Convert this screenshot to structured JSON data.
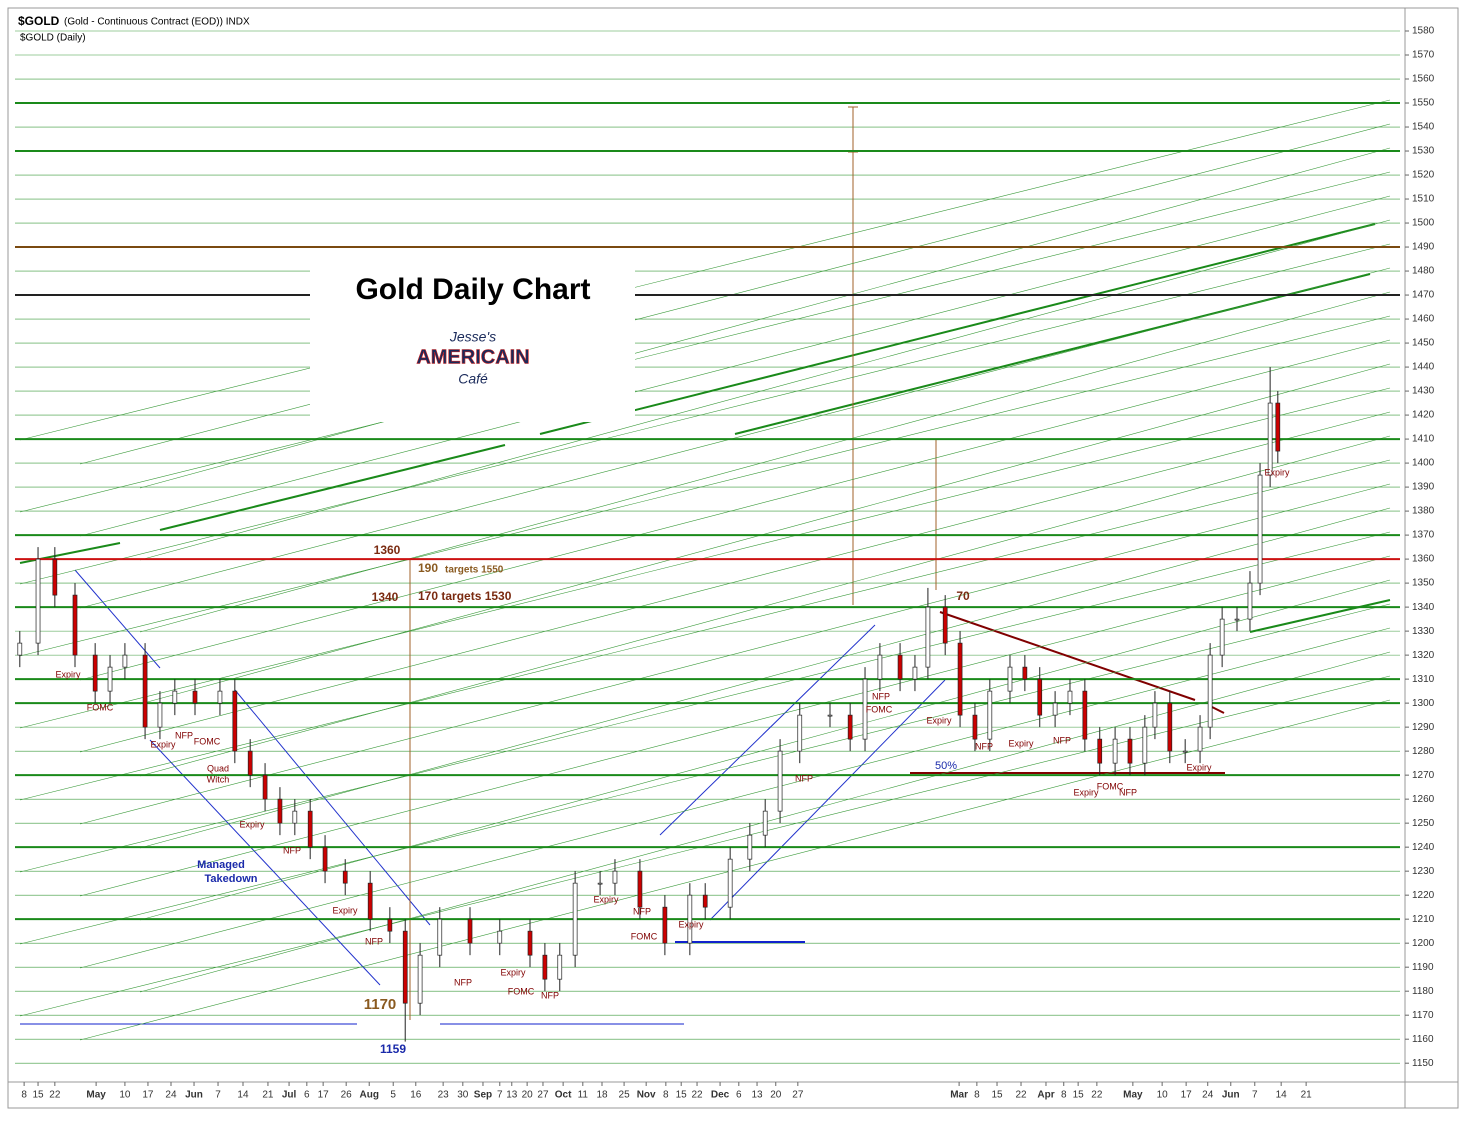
{
  "header": {
    "symbol": "$GOLD",
    "description": "(Gold - Continuous Contract (EOD)) INDX",
    "subtitle": "$GOLD (Daily)"
  },
  "logo": {
    "line1": "Jesse's",
    "line2": "AMERICAIN",
    "line3": "Café"
  },
  "chart_data": {
    "type": "candlestick",
    "title": "Gold Daily Chart",
    "x": [
      1.0,
      4.8,
      8.3,
      12.5,
      16.7,
      19.8,
      22.9,
      27.1,
      30.2,
      33.3,
      37.5,
      42.7,
      45.8,
      49.0,
      52.1,
      55.2,
      58.3,
      61.5,
      64.6,
      68.8,
      74.0,
      78.1,
      81.3,
      84.4,
      88.5,
      94.8,
      101.0,
      107.3,
      110.4,
      113.5,
      116.7,
      121.9,
      125.0,
      130.2,
      135.4,
      140.6,
      143.8,
      149.0,
      153.1,
      156.3,
      159.4,
      163.5,
      169.8,
      174.0,
      177.1,
      180.2,
      184.4,
      187.5,
      190.2,
      193.8,
      196.9,
      200.0,
      203.1,
      207.3,
      210.4,
      213.5,
      216.7,
      219.8,
      222.9,
      226.0,
      229.2,
      232.3,
      235.4,
      237.5,
      240.6,
      243.8,
      246.9,
      249.0,
      251.5,
      254.6,
      257.3,
      259.4,
      261.5,
      263.1
    ],
    "open": [
      1320,
      1325,
      1360,
      1345,
      1320,
      1305,
      1315,
      1320,
      1290,
      1300,
      1305,
      1300,
      1305,
      1280,
      1270,
      1260,
      1250,
      1255,
      1240,
      1230,
      1225,
      1210,
      1205,
      1175,
      1195,
      1210,
      1200,
      1205,
      1195,
      1185,
      1195,
      1225,
      1225,
      1230,
      1215,
      1200,
      1220,
      1215,
      1235,
      1245,
      1255,
      1280,
      1295,
      1295,
      1285,
      1310,
      1320,
      1310,
      1315,
      1340,
      1325,
      1295,
      1285,
      1305,
      1315,
      1310,
      1295,
      1300,
      1305,
      1285,
      1275,
      1285,
      1275,
      1290,
      1300,
      1280,
      1280,
      1290,
      1320,
      1335,
      1335,
      1350,
      1395,
      1425
    ],
    "high": [
      1330,
      1365,
      1365,
      1350,
      1325,
      1320,
      1325,
      1325,
      1305,
      1310,
      1310,
      1310,
      1310,
      1285,
      1275,
      1265,
      1260,
      1260,
      1245,
      1235,
      1230,
      1215,
      1210,
      1200,
      1215,
      1215,
      1210,
      1210,
      1200,
      1200,
      1230,
      1230,
      1235,
      1235,
      1220,
      1225,
      1225,
      1240,
      1250,
      1260,
      1285,
      1300,
      1300,
      1300,
      1315,
      1325,
      1325,
      1320,
      1348,
      1345,
      1330,
      1300,
      1310,
      1320,
      1320,
      1315,
      1305,
      1310,
      1310,
      1290,
      1290,
      1290,
      1295,
      1305,
      1305,
      1285,
      1295,
      1325,
      1340,
      1340,
      1355,
      1400,
      1440,
      1430
    ],
    "low": [
      1315,
      1320,
      1340,
      1315,
      1300,
      1300,
      1310,
      1285,
      1285,
      1295,
      1295,
      1295,
      1275,
      1265,
      1255,
      1245,
      1245,
      1235,
      1225,
      1220,
      1205,
      1200,
      1159,
      1170,
      1190,
      1195,
      1195,
      1190,
      1180,
      1180,
      1190,
      1220,
      1220,
      1210,
      1195,
      1195,
      1210,
      1210,
      1230,
      1240,
      1250,
      1275,
      1290,
      1280,
      1280,
      1305,
      1305,
      1305,
      1310,
      1320,
      1290,
      1280,
      1280,
      1300,
      1305,
      1290,
      1290,
      1295,
      1280,
      1270,
      1270,
      1270,
      1270,
      1285,
      1275,
      1275,
      1275,
      1285,
      1315,
      1330,
      1330,
      1345,
      1390,
      1400
    ],
    "close": [
      1325,
      1360,
      1345,
      1320,
      1305,
      1315,
      1320,
      1290,
      1300,
      1305,
      1300,
      1305,
      1280,
      1270,
      1260,
      1250,
      1255,
      1240,
      1230,
      1225,
      1210,
      1205,
      1175,
      1195,
      1210,
      1200,
      1205,
      1195,
      1185,
      1195,
      1225,
      1225,
      1230,
      1215,
      1200,
      1220,
      1215,
      1235,
      1245,
      1255,
      1280,
      1295,
      1295,
      1285,
      1310,
      1320,
      1310,
      1315,
      1340,
      1325,
      1295,
      1285,
      1305,
      1315,
      1310,
      1295,
      1300,
      1305,
      1285,
      1275,
      1285,
      1275,
      1290,
      1300,
      1280,
      1280,
      1290,
      1320,
      1335,
      1335,
      1350,
      1395,
      1425,
      1405
    ],
    "up_color": "#ffffff",
    "down_color": "#cc0000",
    "xlim": [
      0,
      289.6
    ],
    "xticks": [
      {
        "value": 1.9,
        "label": "8"
      },
      {
        "value": 4.8,
        "label": "15"
      },
      {
        "value": 8.3,
        "label": "22"
      },
      {
        "value": 16.9,
        "label": "May"
      },
      {
        "value": 22.9,
        "label": "10"
      },
      {
        "value": 27.7,
        "label": "17"
      },
      {
        "value": 32.5,
        "label": "24"
      },
      {
        "value": 37.3,
        "label": "Jun"
      },
      {
        "value": 42.3,
        "label": "7"
      },
      {
        "value": 47.5,
        "label": "14"
      },
      {
        "value": 52.7,
        "label": "21"
      },
      {
        "value": 57.1,
        "label": "Jul"
      },
      {
        "value": 60.8,
        "label": "6"
      },
      {
        "value": 64.2,
        "label": "17"
      },
      {
        "value": 69.0,
        "label": "26"
      },
      {
        "value": 73.8,
        "label": "Aug"
      },
      {
        "value": 78.8,
        "label": "5"
      },
      {
        "value": 83.5,
        "label": "16"
      },
      {
        "value": 89.2,
        "label": "23"
      },
      {
        "value": 93.3,
        "label": "30"
      },
      {
        "value": 97.5,
        "label": "Sep"
      },
      {
        "value": 101.0,
        "label": "7"
      },
      {
        "value": 103.5,
        "label": "13"
      },
      {
        "value": 106.7,
        "label": "20"
      },
      {
        "value": 110.0,
        "label": "27"
      },
      {
        "value": 114.2,
        "label": "Oct"
      },
      {
        "value": 118.3,
        "label": "11"
      },
      {
        "value": 122.3,
        "label": "18"
      },
      {
        "value": 126.9,
        "label": "25"
      },
      {
        "value": 131.5,
        "label": "Nov"
      },
      {
        "value": 135.6,
        "label": "8"
      },
      {
        "value": 138.8,
        "label": "15"
      },
      {
        "value": 142.1,
        "label": "22"
      },
      {
        "value": 146.9,
        "label": "Dec"
      },
      {
        "value": 150.8,
        "label": "6"
      },
      {
        "value": 154.6,
        "label": "13"
      },
      {
        "value": 158.5,
        "label": "20"
      },
      {
        "value": 163.1,
        "label": "27"
      },
      {
        "value": 196.7,
        "label": "Mar"
      },
      {
        "value": 200.4,
        "label": "8"
      },
      {
        "value": 204.6,
        "label": "15"
      },
      {
        "value": 209.6,
        "label": "22"
      },
      {
        "value": 214.8,
        "label": "Apr"
      },
      {
        "value": 218.5,
        "label": "8"
      },
      {
        "value": 221.5,
        "label": "15"
      },
      {
        "value": 225.4,
        "label": "22"
      },
      {
        "value": 232.9,
        "label": "May"
      },
      {
        "value": 239.0,
        "label": "10"
      },
      {
        "value": 244.0,
        "label": "17"
      },
      {
        "value": 248.5,
        "label": "24"
      },
      {
        "value": 253.3,
        "label": "Jun"
      },
      {
        "value": 258.3,
        "label": "7"
      },
      {
        "value": 263.8,
        "label": "14"
      },
      {
        "value": 269.0,
        "label": "21"
      }
    ],
    "ylim": [
      1143,
      1590
    ],
    "yticks": [
      1150,
      1160,
      1170,
      1180,
      1190,
      1200,
      1210,
      1220,
      1230,
      1240,
      1250,
      1260,
      1270,
      1280,
      1290,
      1300,
      1310,
      1320,
      1330,
      1340,
      1350,
      1360,
      1370,
      1380,
      1390,
      1400,
      1410,
      1420,
      1430,
      1440,
      1450,
      1460,
      1470,
      1480,
      1490,
      1500,
      1510,
      1520,
      1530,
      1540,
      1550,
      1560,
      1570,
      1580
    ],
    "grid": true,
    "grid_color": "#3a9a3a",
    "levels": [
      {
        "value": 1550,
        "color": "#1a8a1a"
      },
      {
        "value": 1530,
        "color": "#1a8a1a"
      },
      {
        "value": 1490,
        "color": "#7a4a10"
      },
      {
        "value": 1470,
        "color": "#222222"
      },
      {
        "value": 1410,
        "color": "#1a8a1a"
      },
      {
        "value": 1370,
        "color": "#1a8a1a"
      },
      {
        "value": 1360,
        "color": "#cc1111"
      },
      {
        "value": 1340,
        "color": "#1a8a1a"
      },
      {
        "value": 1310,
        "color": "#1a8a1a"
      },
      {
        "value": 1300,
        "color": "#1a8a1a"
      },
      {
        "value": 1270,
        "color": "#1a8a1a"
      },
      {
        "value": 1240,
        "color": "#1a8a1a"
      },
      {
        "value": 1210,
        "color": "#1a8a1a"
      }
    ],
    "events": [
      "Expiry",
      "FOMC",
      "Expiry",
      "NFP",
      "FOMC",
      "Quad",
      "Witch",
      "Expiry",
      "NFP",
      "Expiry",
      "NFP",
      "NFP",
      "Expiry",
      "FOMC",
      "NFP",
      "Expiry",
      "NFP",
      "FOMC",
      "Expiry",
      "NFP",
      "NFP",
      "FOMC",
      "Expiry",
      "NFP",
      "Expiry",
      "NFP",
      "Expiry",
      "FOMC",
      "NFP",
      "Expiry",
      "Expiry"
    ],
    "notes": {
      "managed": "Managed",
      "takedown": "Takedown",
      "l1360": "1360",
      "l1340": "1340",
      "t190": "190",
      "t190b": "targets 1550",
      "t170": "170 targets 1530",
      "n70": "70",
      "pct50": "50%",
      "l1170": "1170",
      "l1159": "1159"
    }
  }
}
